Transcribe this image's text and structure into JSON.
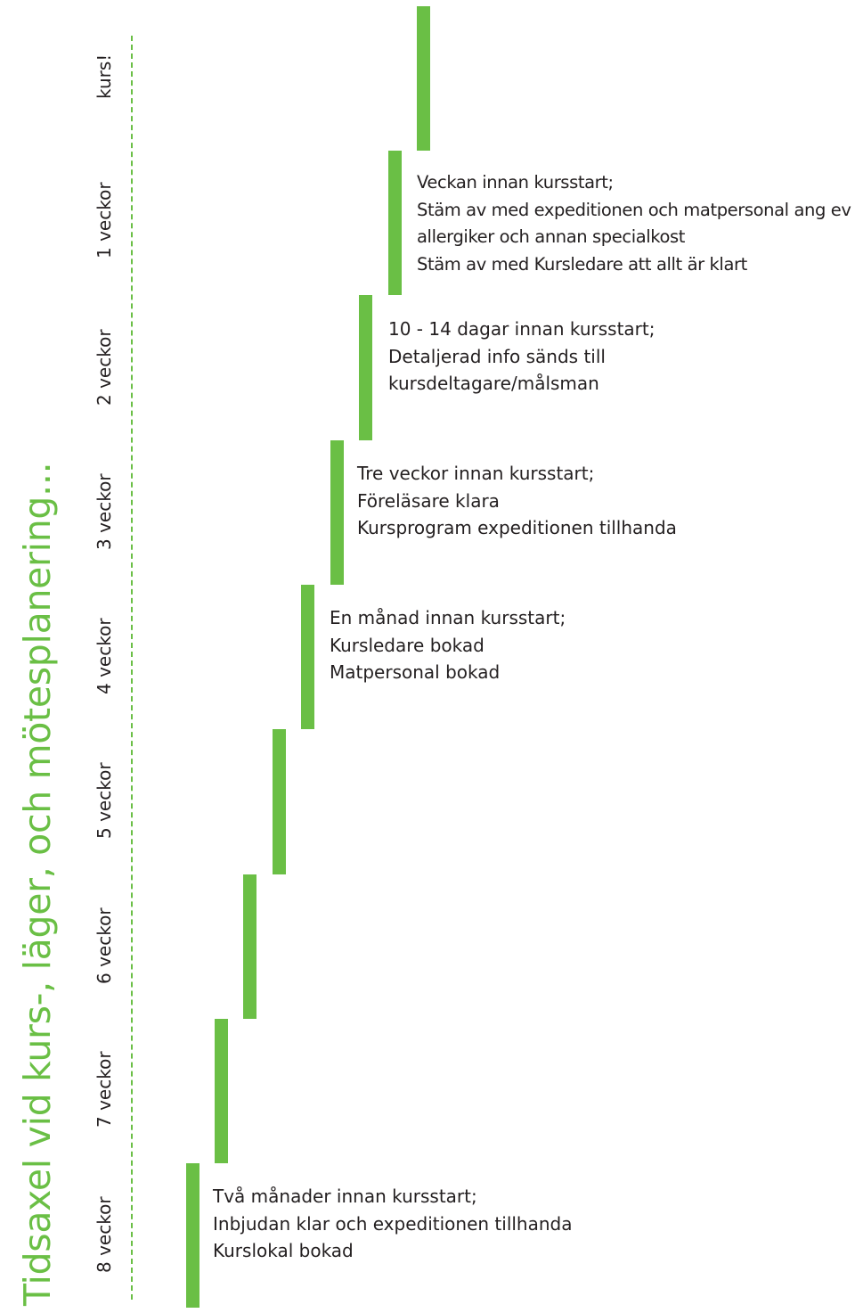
{
  "title": "Tidsaxel vid kurs-, läger, och mötesplanering...",
  "accent_color": "#6abf45",
  "weeks": [
    "8 veckor",
    "7 veckor",
    "6 veckor",
    "5 veckor",
    "4 veckor",
    "3 veckor",
    "2 veckor",
    "1 veckor",
    "kurs!"
  ],
  "notes": {
    "two_months": {
      "heading": "Två månader innan kursstart;",
      "line1": "Inbjudan klar och expeditionen tillhanda",
      "line2": "Kurslokal bokad"
    },
    "one_month": {
      "heading": "En månad innan kursstart;",
      "line1": "Kursledare bokad",
      "line2": "Matpersonal bokad"
    },
    "three_weeks": {
      "heading": "Tre veckor innan kursstart;",
      "line1": "Föreläsare klara",
      "line2": "Kursprogram expeditionen tillhanda"
    },
    "ten_days": {
      "heading": "10 - 14  dagar innan kursstart;",
      "line1": "Detaljerad info sänds till",
      "line2": "kursdeltagare/målsman"
    },
    "one_week": {
      "heading": "Veckan innan kursstart;",
      "line1": "Stäm av med expeditionen och matpersonal ang ev",
      "line2": "allergiker och annan specialkost",
      "line3": "Stäm av med Kursledare att allt är klart"
    }
  }
}
